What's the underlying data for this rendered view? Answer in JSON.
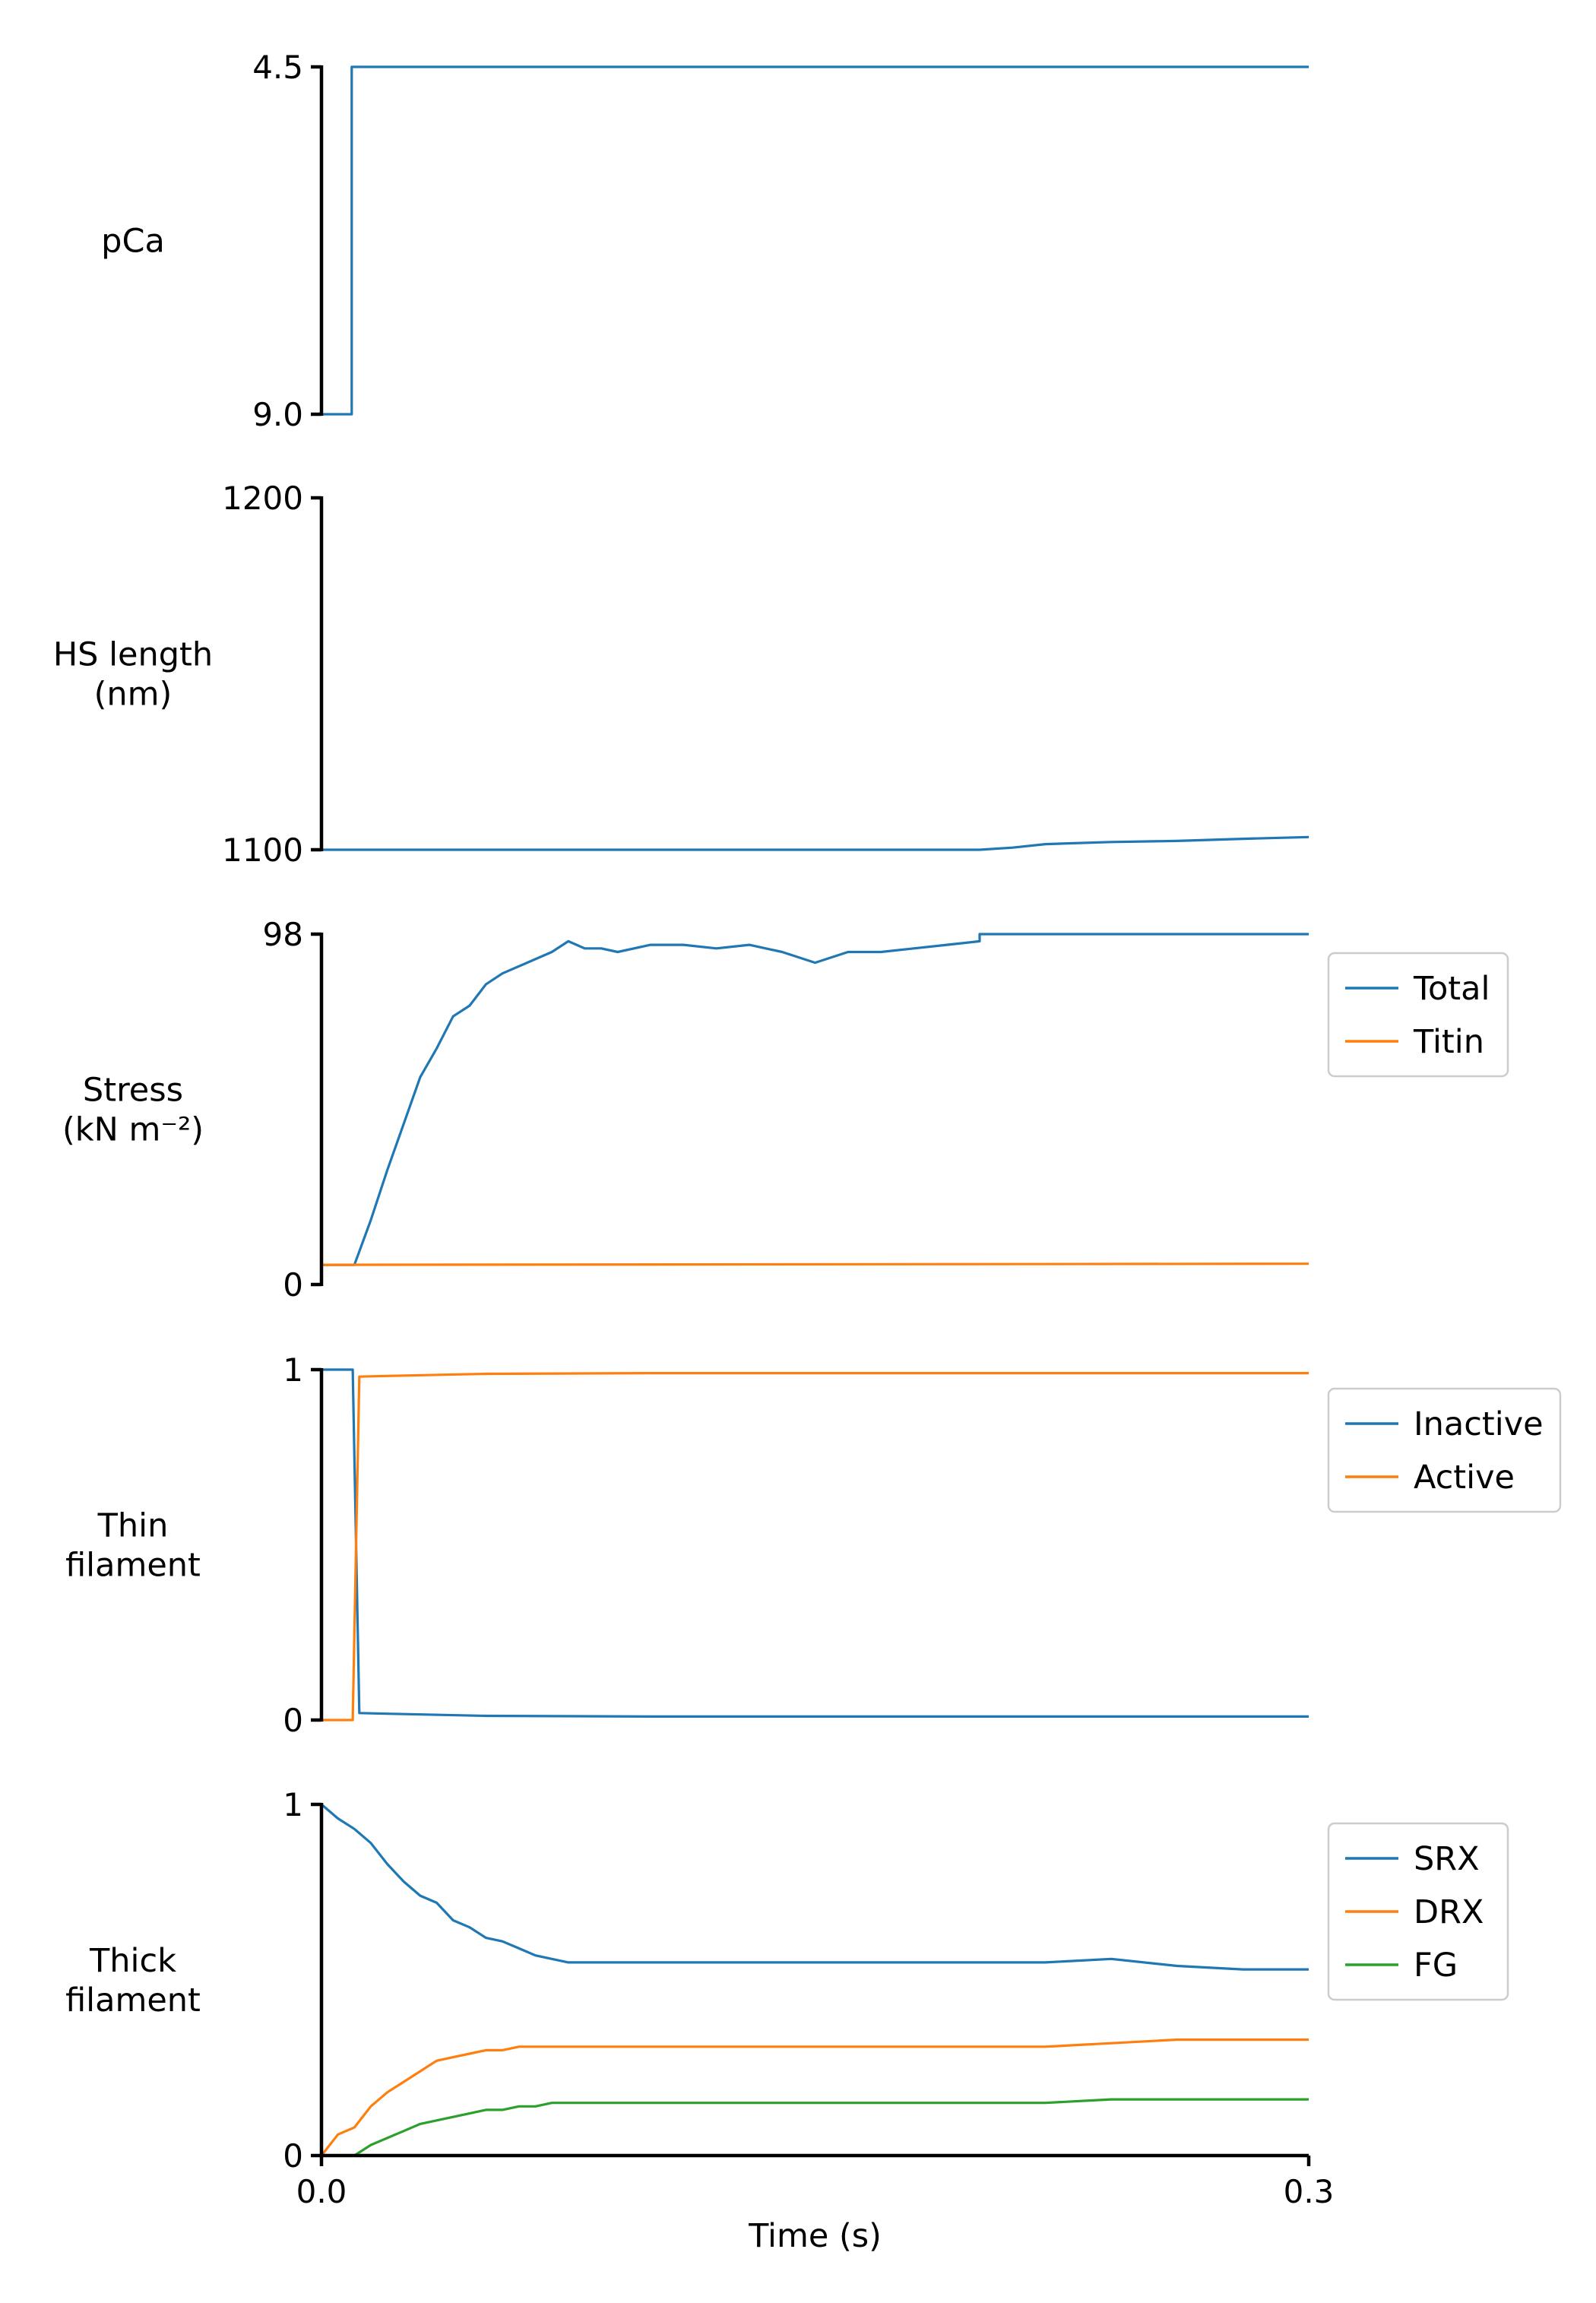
{
  "colors": {
    "blue": "#1f77b4",
    "orange": "#ff7f0e",
    "green": "#2ca02c"
  },
  "chart_data": [
    {
      "type": "line",
      "ylabel": [
        "pCa"
      ],
      "xlim": [
        0,
        0.3
      ],
      "ylim": [
        9.0,
        4.5
      ],
      "y_inverted": true,
      "yticks": [
        "4.5",
        "9.0"
      ],
      "ytick_values": [
        4.5,
        9.0
      ],
      "legend": "none",
      "series": [
        {
          "color": "#1f77b4",
          "x": [
            0,
            0.0092,
            0.0092,
            0.3
          ],
          "y": [
            9.0,
            9.0,
            4.5,
            4.5
          ]
        }
      ]
    },
    {
      "type": "line",
      "ylabel": [
        "HS length",
        "(nm)"
      ],
      "xlim": [
        0,
        0.3
      ],
      "ylim": [
        1100,
        1200
      ],
      "yticks": [
        "1200",
        "1100"
      ],
      "ytick_values": [
        1200,
        1100
      ],
      "legend": "none",
      "series": [
        {
          "color": "#1f77b4",
          "x": [
            0,
            0.2,
            0.21,
            0.22,
            0.24,
            0.26,
            0.28,
            0.3
          ],
          "y": [
            1100,
            1100,
            1100.6,
            1101.6,
            1102.2,
            1102.5,
            1103.1,
            1103.6
          ]
        }
      ]
    },
    {
      "type": "line",
      "ylabel": [
        "Stress",
        "(kN m⁻²)"
      ],
      "xlim": [
        0,
        0.3
      ],
      "ylim": [
        0,
        98
      ],
      "yticks": [
        "98",
        "0"
      ],
      "ytick_values": [
        98,
        0
      ],
      "legend": "right",
      "legend_entries": [
        "Total",
        "Titin"
      ],
      "series": [
        {
          "name": "Total",
          "color": "#1f77b4",
          "x": [
            0,
            0.01,
            0.015,
            0.02,
            0.025,
            0.03,
            0.035,
            0.04,
            0.045,
            0.05,
            0.055,
            0.06,
            0.065,
            0.07,
            0.075,
            0.08,
            0.085,
            0.09,
            0.1,
            0.11,
            0.12,
            0.13,
            0.14,
            0.15,
            0.16,
            0.17,
            0.18,
            0.19,
            0.2,
            0.2,
            0.3
          ],
          "y": [
            5.5,
            5.5,
            18,
            32,
            45,
            58,
            66,
            75,
            78,
            84,
            87,
            89,
            91,
            93,
            96,
            94,
            94,
            93,
            95,
            95,
            94,
            95,
            93,
            90,
            93,
            93,
            94,
            95,
            96,
            98,
            98
          ]
        },
        {
          "name": "Titin",
          "color": "#ff7f0e",
          "x": [
            0,
            0.3
          ],
          "y": [
            5.5,
            5.8
          ]
        }
      ]
    },
    {
      "type": "line",
      "ylabel": [
        "Thin",
        "filament"
      ],
      "xlim": [
        0,
        0.3
      ],
      "ylim": [
        0,
        1
      ],
      "yticks": [
        "1",
        "0"
      ],
      "ytick_values": [
        1,
        0
      ],
      "legend": "right",
      "legend_entries": [
        "Inactive",
        "Active"
      ],
      "series": [
        {
          "name": "Inactive",
          "color": "#1f77b4",
          "x": [
            0,
            0.0095,
            0.0115,
            0.02,
            0.05,
            0.1,
            0.15,
            0.2,
            0.25,
            0.3
          ],
          "y": [
            1.0,
            1.0,
            0.02,
            0.018,
            0.012,
            0.01,
            0.01,
            0.01,
            0.01,
            0.01
          ]
        },
        {
          "name": "Active",
          "color": "#ff7f0e",
          "x": [
            0,
            0.0095,
            0.0115,
            0.02,
            0.05,
            0.1,
            0.15,
            0.2,
            0.25,
            0.3
          ],
          "y": [
            0.0,
            0.0,
            0.98,
            0.982,
            0.988,
            0.99,
            0.99,
            0.99,
            0.99,
            0.99
          ]
        }
      ]
    },
    {
      "type": "line",
      "ylabel": [
        "Thick",
        "filament"
      ],
      "xlim": [
        0,
        0.3
      ],
      "ylim": [
        0,
        1
      ],
      "xticks": [
        "0.0",
        "0.3"
      ],
      "xtick_values": [
        0,
        0.3
      ],
      "xlabel": "Time (s)",
      "yticks": [
        "1",
        "0"
      ],
      "ytick_values": [
        1,
        0
      ],
      "legend": "right",
      "legend_entries": [
        "SRX",
        "DRX",
        "FG"
      ],
      "series": [
        {
          "name": "SRX",
          "color": "#1f77b4",
          "x": [
            0,
            0.005,
            0.01,
            0.015,
            0.02,
            0.025,
            0.03,
            0.035,
            0.04,
            0.045,
            0.05,
            0.055,
            0.06,
            0.065,
            0.07,
            0.075,
            0.08,
            0.09,
            0.1,
            0.12,
            0.14,
            0.16,
            0.18,
            0.2,
            0.22,
            0.24,
            0.26,
            0.28,
            0.3
          ],
          "y": [
            1.0,
            0.96,
            0.93,
            0.89,
            0.83,
            0.78,
            0.74,
            0.72,
            0.67,
            0.65,
            0.62,
            0.61,
            0.59,
            0.57,
            0.56,
            0.55,
            0.55,
            0.55,
            0.55,
            0.55,
            0.55,
            0.55,
            0.55,
            0.55,
            0.55,
            0.56,
            0.54,
            0.53,
            0.53
          ]
        },
        {
          "name": "DRX",
          "color": "#ff7f0e",
          "x": [
            0,
            0.005,
            0.01,
            0.015,
            0.02,
            0.025,
            0.03,
            0.035,
            0.04,
            0.045,
            0.05,
            0.055,
            0.06,
            0.065,
            0.07,
            0.075,
            0.08,
            0.09,
            0.1,
            0.12,
            0.14,
            0.16,
            0.18,
            0.2,
            0.22,
            0.24,
            0.26,
            0.28,
            0.3
          ],
          "y": [
            0.0,
            0.06,
            0.08,
            0.14,
            0.18,
            0.21,
            0.24,
            0.27,
            0.28,
            0.29,
            0.3,
            0.3,
            0.31,
            0.31,
            0.31,
            0.31,
            0.31,
            0.31,
            0.31,
            0.31,
            0.31,
            0.31,
            0.31,
            0.31,
            0.31,
            0.32,
            0.33,
            0.33,
            0.33
          ]
        },
        {
          "name": "FG",
          "color": "#2ca02c",
          "x": [
            0,
            0.01,
            0.015,
            0.02,
            0.025,
            0.03,
            0.035,
            0.04,
            0.045,
            0.05,
            0.055,
            0.06,
            0.065,
            0.07,
            0.075,
            0.08,
            0.09,
            0.1,
            0.12,
            0.14,
            0.16,
            0.18,
            0.2,
            0.22,
            0.24,
            0.26,
            0.28,
            0.3
          ],
          "y": [
            0.0,
            0.0,
            0.03,
            0.05,
            0.07,
            0.09,
            0.1,
            0.11,
            0.12,
            0.13,
            0.13,
            0.14,
            0.14,
            0.15,
            0.15,
            0.15,
            0.15,
            0.15,
            0.15,
            0.15,
            0.15,
            0.15,
            0.15,
            0.15,
            0.16,
            0.16,
            0.16,
            0.16
          ]
        }
      ]
    }
  ]
}
